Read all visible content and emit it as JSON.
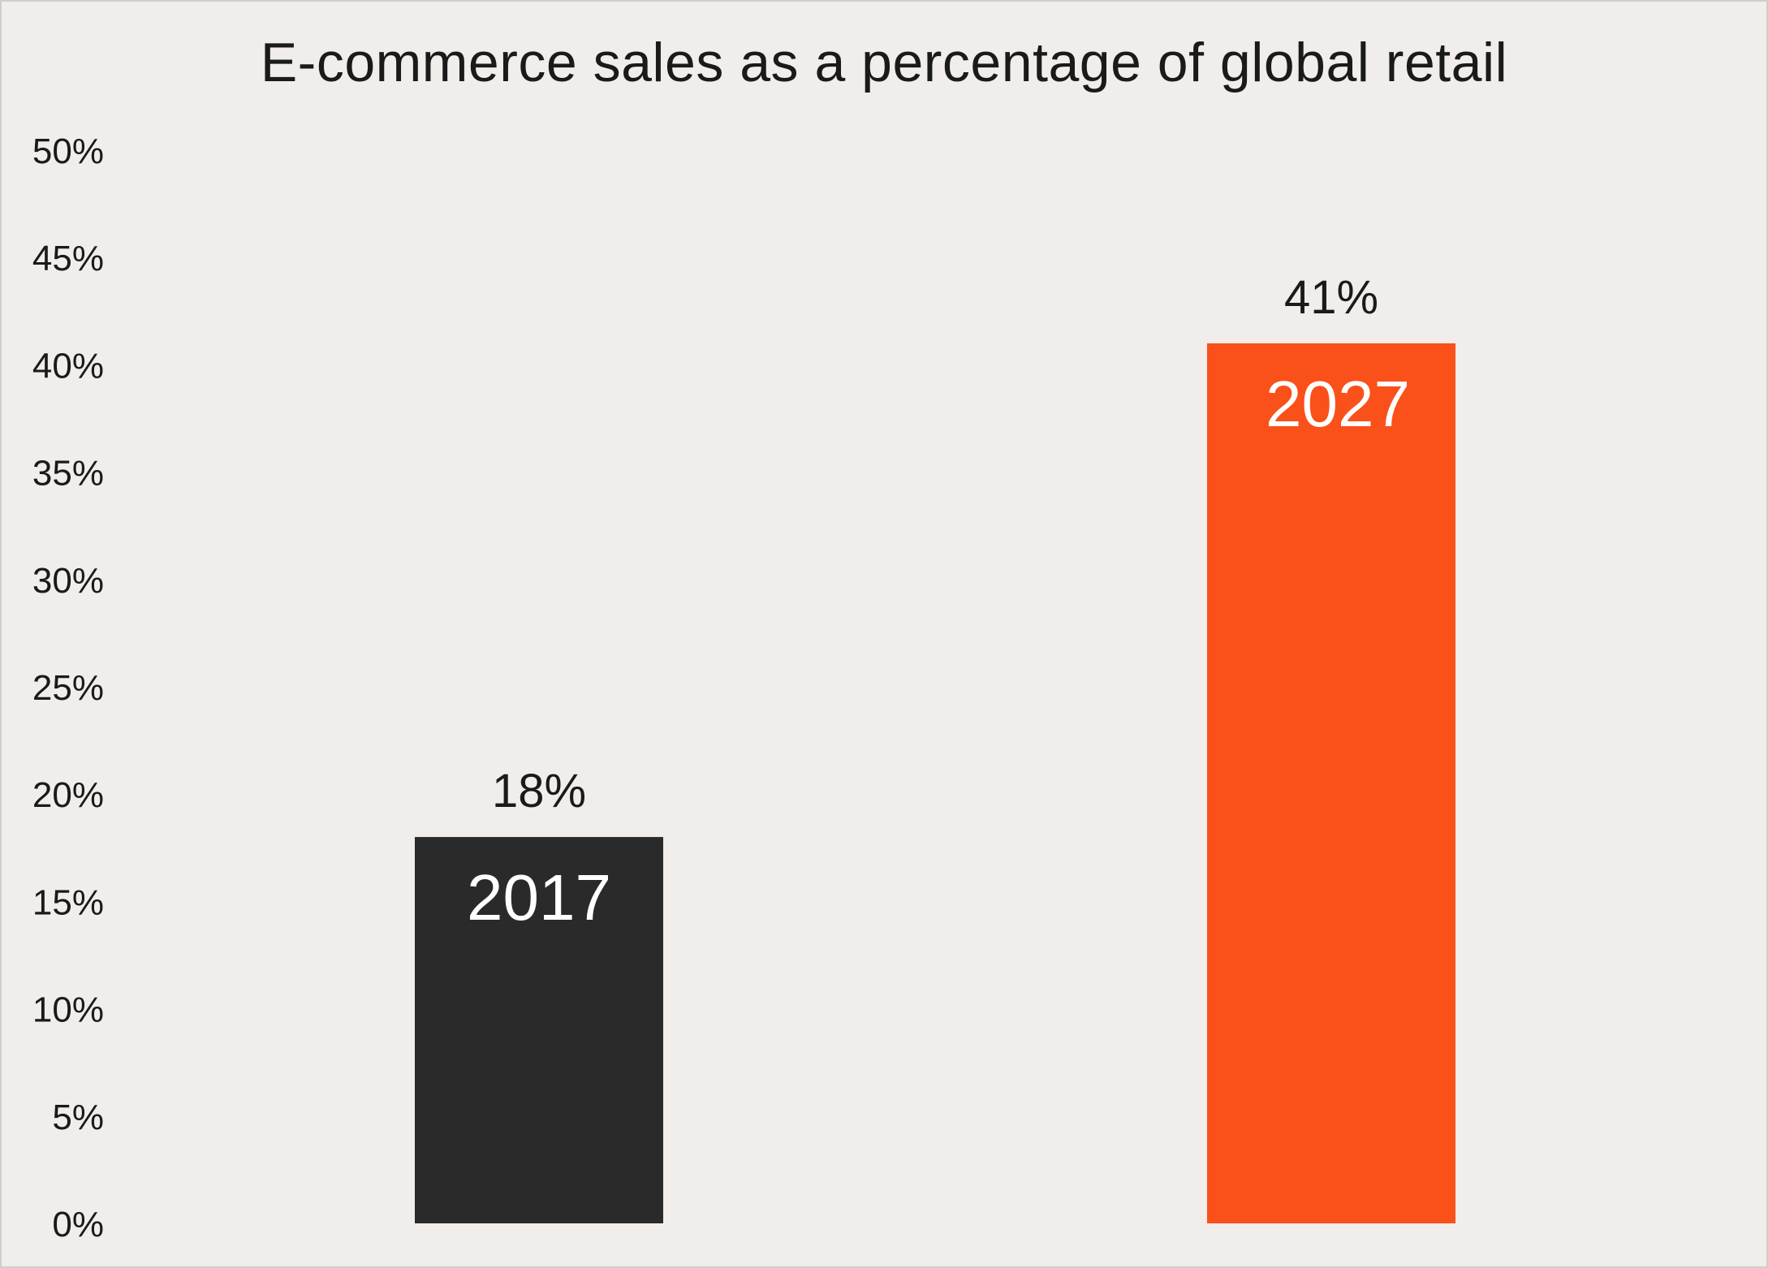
{
  "chart_data": {
    "type": "bar",
    "title": "E-commerce sales as a percentage of global retail",
    "xlabel": "",
    "ylabel": "",
    "categories": [
      "2017",
      "2027"
    ],
    "values": [
      18,
      41
    ],
    "value_labels": [
      "18%",
      "41%"
    ],
    "bar_colors": [
      "#2a2a2a",
      "#fa5019"
    ],
    "ylim": [
      0,
      50
    ],
    "y_ticks": [
      0,
      5,
      10,
      15,
      20,
      25,
      30,
      35,
      40,
      45,
      50
    ],
    "y_tick_labels": [
      "0%",
      "5%",
      "10%",
      "15%",
      "20%",
      "25%",
      "30%",
      "35%",
      "40%",
      "45%",
      "50%"
    ],
    "grid": false,
    "legend": "none",
    "category_label_position": "inside-top-of-bar"
  },
  "colors": {
    "background": "#f0edea",
    "text": "#1a1a1a",
    "category_label": "#ffffff"
  }
}
